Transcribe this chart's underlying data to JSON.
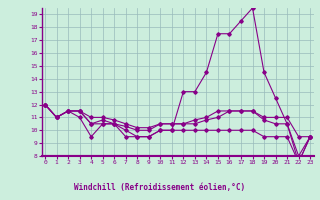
{
  "xlabel": "Windchill (Refroidissement éolien,°C)",
  "background_color": "#cceedd",
  "grid_color": "#99bbbb",
  "line_color": "#880088",
  "separator_color": "#880088",
  "x": [
    0,
    1,
    2,
    3,
    4,
    5,
    6,
    7,
    8,
    9,
    10,
    11,
    12,
    13,
    14,
    15,
    16,
    17,
    18,
    19,
    20,
    21,
    22,
    23
  ],
  "line1": [
    12,
    11,
    11.5,
    11,
    9.5,
    10.5,
    10.5,
    10,
    9.5,
    9.5,
    10.0,
    10.0,
    10.0,
    10.0,
    10.0,
    10.0,
    10.0,
    10.0,
    10.0,
    9.5,
    9.5,
    9.5,
    7.5,
    9.5
  ],
  "line2": [
    12,
    11,
    11.5,
    11.5,
    11,
    11,
    10.8,
    10.5,
    10.2,
    10.2,
    10.5,
    10.5,
    10.5,
    10.8,
    11,
    11.5,
    11.5,
    11.5,
    11.5,
    11,
    11,
    11,
    9.5,
    9.5
  ],
  "line3": [
    12,
    11,
    11.5,
    11.5,
    10.5,
    10.8,
    10.5,
    10.3,
    10.0,
    10.0,
    10.5,
    10.5,
    10.5,
    10.5,
    10.8,
    11,
    11.5,
    11.5,
    11.5,
    10.8,
    10.5,
    10.5,
    8.0,
    9.5
  ],
  "line4": [
    12,
    11,
    11.5,
    11.5,
    10.5,
    10.5,
    10.5,
    9.5,
    9.5,
    9.5,
    10,
    10,
    13,
    13,
    14.5,
    17.5,
    17.5,
    18.5,
    19.5,
    14.5,
    12.5,
    10.5,
    7.5,
    9.5
  ],
  "ylim": [
    8,
    19.5
  ],
  "xlim": [
    -0.3,
    23.3
  ],
  "yticks": [
    8,
    9,
    10,
    11,
    12,
    13,
    14,
    15,
    16,
    17,
    18,
    19
  ],
  "xticks": [
    0,
    1,
    2,
    3,
    4,
    5,
    6,
    7,
    8,
    9,
    10,
    11,
    12,
    13,
    14,
    15,
    16,
    17,
    18,
    19,
    20,
    21,
    22,
    23
  ]
}
